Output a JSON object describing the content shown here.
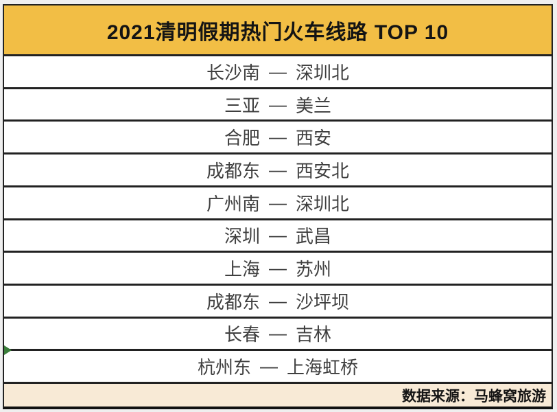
{
  "title": "2021清明假期热门火车线路 TOP 10",
  "separator": "—",
  "routes": [
    {
      "from": "长沙南",
      "to": "深圳北"
    },
    {
      "from": "三亚",
      "to": "美兰"
    },
    {
      "from": "合肥",
      "to": "西安"
    },
    {
      "from": "成都东",
      "to": "西安北"
    },
    {
      "from": "广州南",
      "to": "深圳北"
    },
    {
      "from": "深圳",
      "to": "武昌"
    },
    {
      "from": "上海",
      "to": "苏州"
    },
    {
      "from": "成都东",
      "to": "沙坪坝"
    },
    {
      "from": "长春",
      "to": "吉林"
    },
    {
      "from": "杭州东",
      "to": "上海虹桥"
    }
  ],
  "footer": {
    "source_label": "数据来源：马蜂窝旅游"
  },
  "marker": {
    "row_index": 9
  },
  "colors": {
    "header_bg": "#F2BE45",
    "footer_bg": "#F8EAD6",
    "border": "#222222",
    "header_text": "#141414",
    "row_text": "#3F3F3F",
    "marker_green": "#3A7D3A",
    "outer_bg": "#EFEFEF"
  },
  "chart_data": {
    "type": "table",
    "title": "2021清明假期热门火车线路 TOP 10",
    "columns": [
      "热门火车线路"
    ],
    "rows": [
      [
        "长沙南 — 深圳北"
      ],
      [
        "三亚 — 美兰"
      ],
      [
        "合肥 — 西安"
      ],
      [
        "成都东 — 西安北"
      ],
      [
        "广州南 — 深圳北"
      ],
      [
        "深圳 — 武昌"
      ],
      [
        "上海 — 苏州"
      ],
      [
        "成都东 — 沙坪坝"
      ],
      [
        "长春 — 吉林"
      ],
      [
        "杭州东 — 上海虹桥"
      ]
    ],
    "source": "数据来源：马蜂窝旅游",
    "legend_position": "none",
    "grid": true
  }
}
